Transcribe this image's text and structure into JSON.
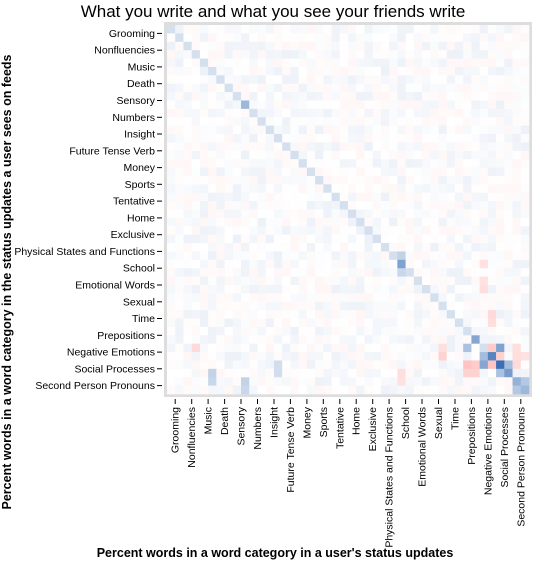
{
  "chart_data": {
    "type": "heatmap",
    "title": "What you write and what you see your friends write",
    "xlabel": "Percent words in a word category in a user's status updates",
    "ylabel": "Percent words in a word category in the status updates a user sees on feeds",
    "labeled_categories": [
      "Grooming",
      "Nonfluencies",
      "Music",
      "Death",
      "Sensory",
      "Numbers",
      "Insight",
      "Future Tense Verb",
      "Money",
      "Sports",
      "Tentative",
      "Home",
      "Exclusive",
      "Physical States and Functions",
      "School",
      "Emotional Words",
      "Sexual",
      "Time",
      "Prepositions",
      "Negative Emotions",
      "Social Processes",
      "Second Person Pronouns"
    ],
    "grid_size": 44,
    "value_range": [
      -1,
      1
    ],
    "colors": {
      "positive": "#3a6fb5",
      "negative": "#ff9e9e",
      "neutral": "#ffffff",
      "frame": "#dddddd"
    },
    "strong_cells": [
      {
        "row": 9,
        "col": 9,
        "value": 0.32
      },
      {
        "row": 28,
        "col": 28,
        "value": 0.42
      },
      {
        "row": 37,
        "col": 37,
        "value": 0.4
      },
      {
        "row": 39,
        "col": 39,
        "value": 0.55
      },
      {
        "row": 40,
        "col": 40,
        "value": 0.65
      },
      {
        "row": 38,
        "col": 40,
        "value": 0.42
      },
      {
        "row": 40,
        "col": 38,
        "value": 0.4
      },
      {
        "row": 41,
        "col": 41,
        "value": 0.45
      },
      {
        "row": 42,
        "col": 42,
        "value": 0.35
      },
      {
        "row": 43,
        "col": 43,
        "value": 0.32
      },
      {
        "row": 38,
        "col": 36,
        "value": 0.28
      },
      {
        "row": 39,
        "col": 38,
        "value": 0.3
      },
      {
        "row": 40,
        "col": 41,
        "value": 0.3
      },
      {
        "row": 41,
        "col": 40,
        "value": 0.28
      },
      {
        "row": 42,
        "col": 43,
        "value": 0.25
      },
      {
        "row": 43,
        "col": 42,
        "value": 0.25
      },
      {
        "row": 38,
        "col": 39,
        "value": -0.35
      },
      {
        "row": 39,
        "col": 40,
        "value": -0.3
      },
      {
        "row": 40,
        "col": 39,
        "value": -0.4
      },
      {
        "row": 40,
        "col": 36,
        "value": -0.4
      },
      {
        "row": 40,
        "col": 37,
        "value": -0.35
      },
      {
        "row": 41,
        "col": 36,
        "value": -0.3
      },
      {
        "row": 41,
        "col": 37,
        "value": -0.3
      },
      {
        "row": 40,
        "col": 42,
        "value": -0.25
      },
      {
        "row": 38,
        "col": 42,
        "value": -0.22
      },
      {
        "row": 39,
        "col": 42,
        "value": -0.22
      },
      {
        "row": 39,
        "col": 43,
        "value": -0.2
      },
      {
        "row": 38,
        "col": 3,
        "value": -0.25
      },
      {
        "row": 39,
        "col": 33,
        "value": -0.3
      },
      {
        "row": 38,
        "col": 33,
        "value": -0.22
      },
      {
        "row": 34,
        "col": 39,
        "value": -0.25
      },
      {
        "row": 35,
        "col": 39,
        "value": -0.22
      },
      {
        "row": 31,
        "col": 38,
        "value": -0.22
      },
      {
        "row": 30,
        "col": 38,
        "value": -0.2
      },
      {
        "row": 28,
        "col": 38,
        "value": -0.2
      },
      {
        "row": 41,
        "col": 28,
        "value": -0.22
      },
      {
        "row": 42,
        "col": 28,
        "value": -0.2
      },
      {
        "row": 27,
        "col": 28,
        "value": 0.2
      },
      {
        "row": 29,
        "col": 28,
        "value": 0.18
      },
      {
        "row": 41,
        "col": 5,
        "value": 0.2
      },
      {
        "row": 42,
        "col": 5,
        "value": 0.18
      },
      {
        "row": 42,
        "col": 9,
        "value": 0.2
      },
      {
        "row": 43,
        "col": 9,
        "value": 0.18
      },
      {
        "row": 40,
        "col": 13,
        "value": 0.15
      },
      {
        "row": 41,
        "col": 13,
        "value": 0.15
      }
    ]
  }
}
